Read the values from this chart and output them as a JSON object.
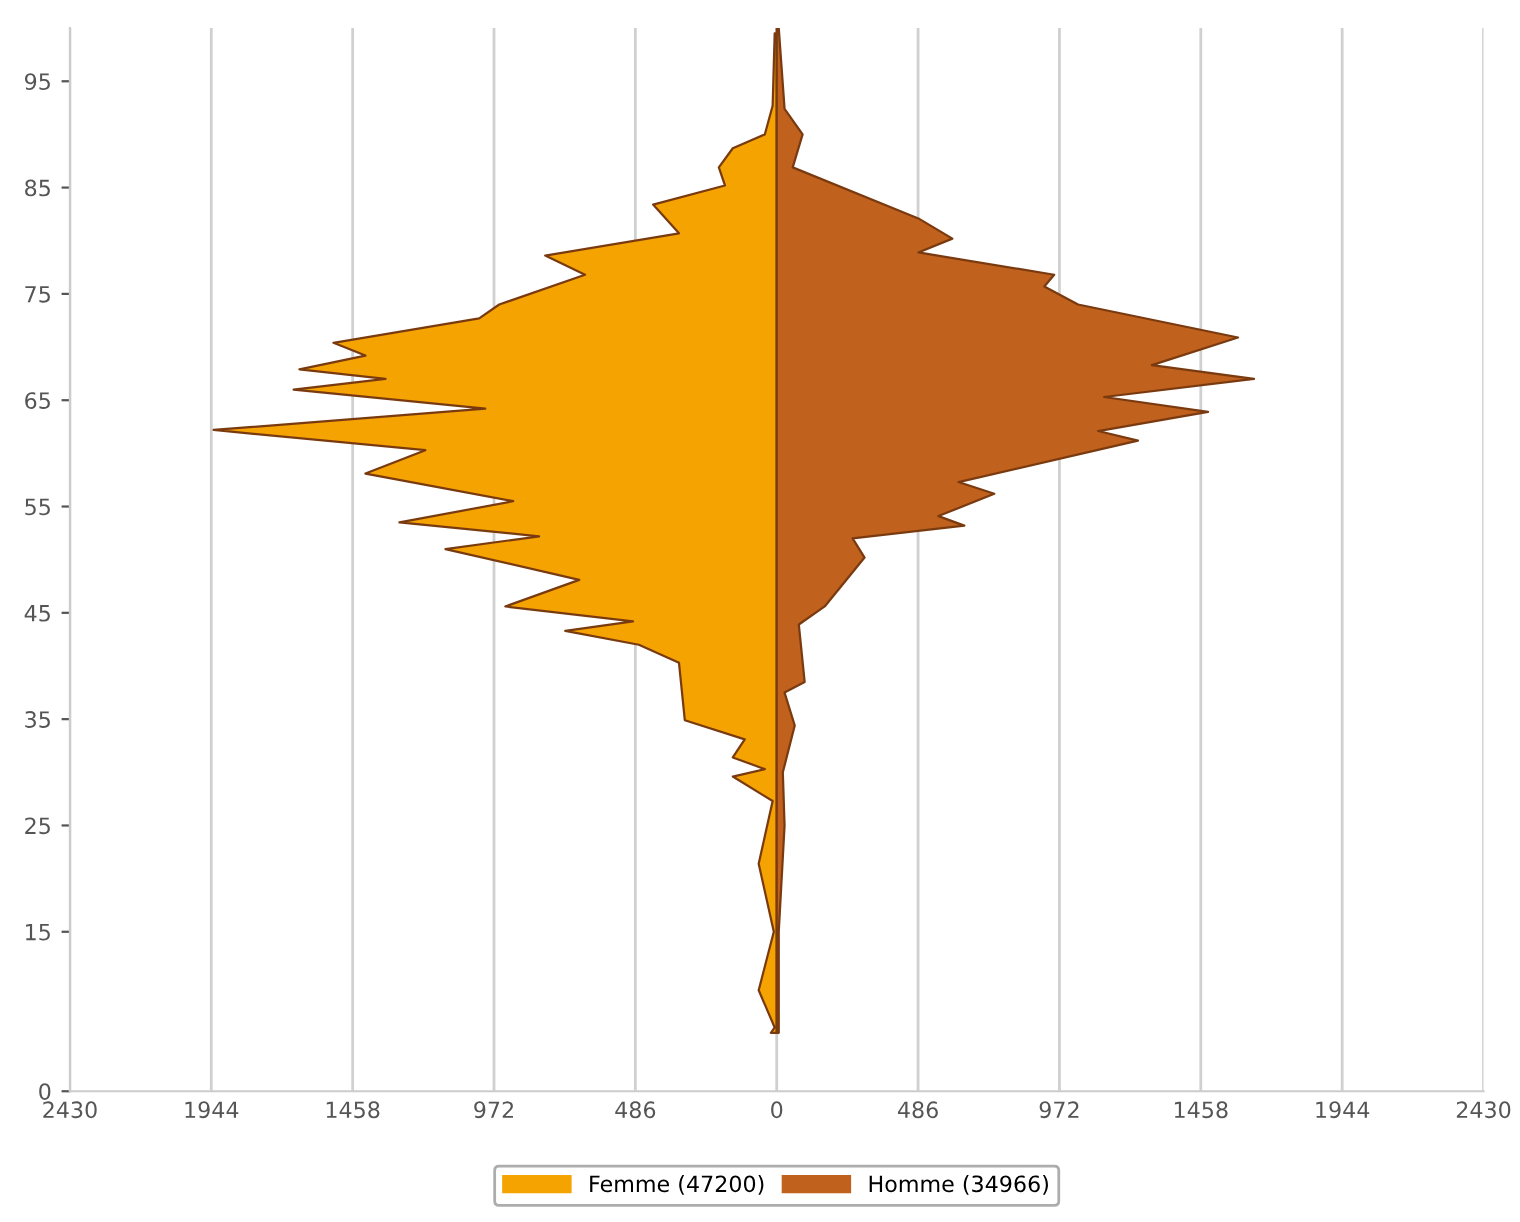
{
  "chart_data": {
    "type": "area",
    "orientation": "horizontal",
    "series": [
      {
        "name": "Femme (47200)",
        "color": "#f5a300",
        "x": [
          5.5,
          6,
          9.5,
          15,
          21.4,
          27.3,
          29.6,
          30.3,
          31.4,
          33.1,
          34.9,
          40.3,
          42,
          43.3,
          44.2,
          45.6,
          48.1,
          51,
          52.2,
          53.5,
          55.5,
          58.1,
          60.3,
          62.2,
          64.2,
          66,
          67,
          67.9,
          69.2,
          70.4,
          72.7,
          74,
          76.8,
          78.6,
          80.7,
          83.4,
          85.2,
          86.9,
          88.7,
          90,
          92.7,
          99.5
        ],
        "values": [
          -20,
          -7,
          -62,
          -10,
          -62,
          -14,
          -151,
          -41,
          -151,
          -110,
          -316,
          -336,
          -474,
          -727,
          -494,
          -933,
          -679,
          -1139,
          -817,
          -1297,
          -906,
          -1414,
          -1208,
          -1936,
          -1002,
          -1661,
          -1345,
          -1641,
          -1414,
          -1524,
          -1023,
          -954,
          -659,
          -796,
          -336,
          -425,
          -178,
          -199,
          -151,
          -41,
          -14,
          -7
        ]
      },
      {
        "name": "Homme (34966)",
        "color": "#c0611d",
        "x": [
          5.5,
          15,
          25,
          30,
          34.4,
          37.5,
          38.5,
          43.9,
          45.6,
          50.2,
          52,
          53.2,
          54.1,
          56.2,
          57.3,
          61.2,
          62.1,
          63.9,
          65.3,
          67,
          68.3,
          70.9,
          74,
          75.7,
          76.8,
          78.9,
          80.2,
          82.1,
          86.9,
          90,
          92.4,
          100
        ],
        "values": [
          7,
          7,
          27,
          21,
          62,
          27,
          96,
          76,
          165,
          302,
          261,
          645,
          556,
          748,
          625,
          1242,
          1105,
          1483,
          1126,
          1641,
          1290,
          1586,
          1036,
          920,
          954,
          487,
          604,
          487,
          55,
          89,
          27,
          7
        ]
      }
    ],
    "xlim": [
      -2430,
      2430
    ],
    "xticks": [
      {
        "value": -2430,
        "label": "2430"
      },
      {
        "value": -1944,
        "label": "1944"
      },
      {
        "value": -1458,
        "label": "1458"
      },
      {
        "value": -972,
        "label": "972"
      },
      {
        "value": -486,
        "label": "486"
      },
      0,
      486,
      972,
      1458,
      1944,
      2430
    ],
    "ylim": [
      0,
      100
    ],
    "yticks": [
      0,
      15,
      25,
      35,
      45,
      55,
      65,
      75,
      85,
      95
    ],
    "grid": "x",
    "legend": "bottom"
  }
}
